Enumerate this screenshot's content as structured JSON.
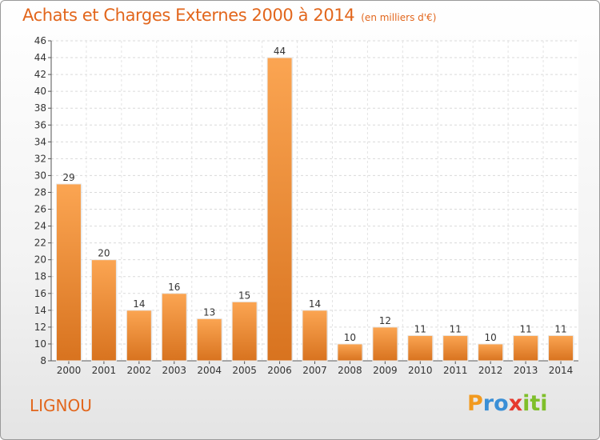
{
  "header": {
    "title": "Achats et Charges Externes 2000 à 2014",
    "subtitle": "(en milliers d'€)"
  },
  "footer": {
    "commune": "LIGNOU",
    "brand_letters": [
      "P",
      "r",
      "o",
      "x",
      "i",
      "t",
      "i"
    ],
    "brand_colors": [
      "#f29a1f",
      "#3a8fd6",
      "#3a8fd6",
      "#e63a2e",
      "#7fbf2a",
      "#7fbf2a",
      "#7fbf2a"
    ]
  },
  "chart_data": {
    "type": "bar",
    "title": "Achats et Charges Externes 2000 à 2014",
    "subtitle": "(en milliers d'€)",
    "categories": [
      "2000",
      "2001",
      "2002",
      "2003",
      "2004",
      "2005",
      "2006",
      "2007",
      "2008",
      "2009",
      "2010",
      "2011",
      "2012",
      "2013",
      "2014"
    ],
    "values": [
      29,
      20,
      14,
      16,
      13,
      15,
      44,
      14,
      10,
      12,
      11,
      11,
      10,
      11,
      11
    ],
    "ylim": [
      8,
      46
    ],
    "yticks": [
      8,
      10,
      12,
      14,
      16,
      18,
      20,
      22,
      24,
      26,
      28,
      30,
      32,
      34,
      36,
      38,
      40,
      42,
      44,
      46
    ],
    "grid": true,
    "bar_color": "#f0903a",
    "bar_color_light": "#fba552",
    "bar_color_dark": "#d8731f"
  }
}
